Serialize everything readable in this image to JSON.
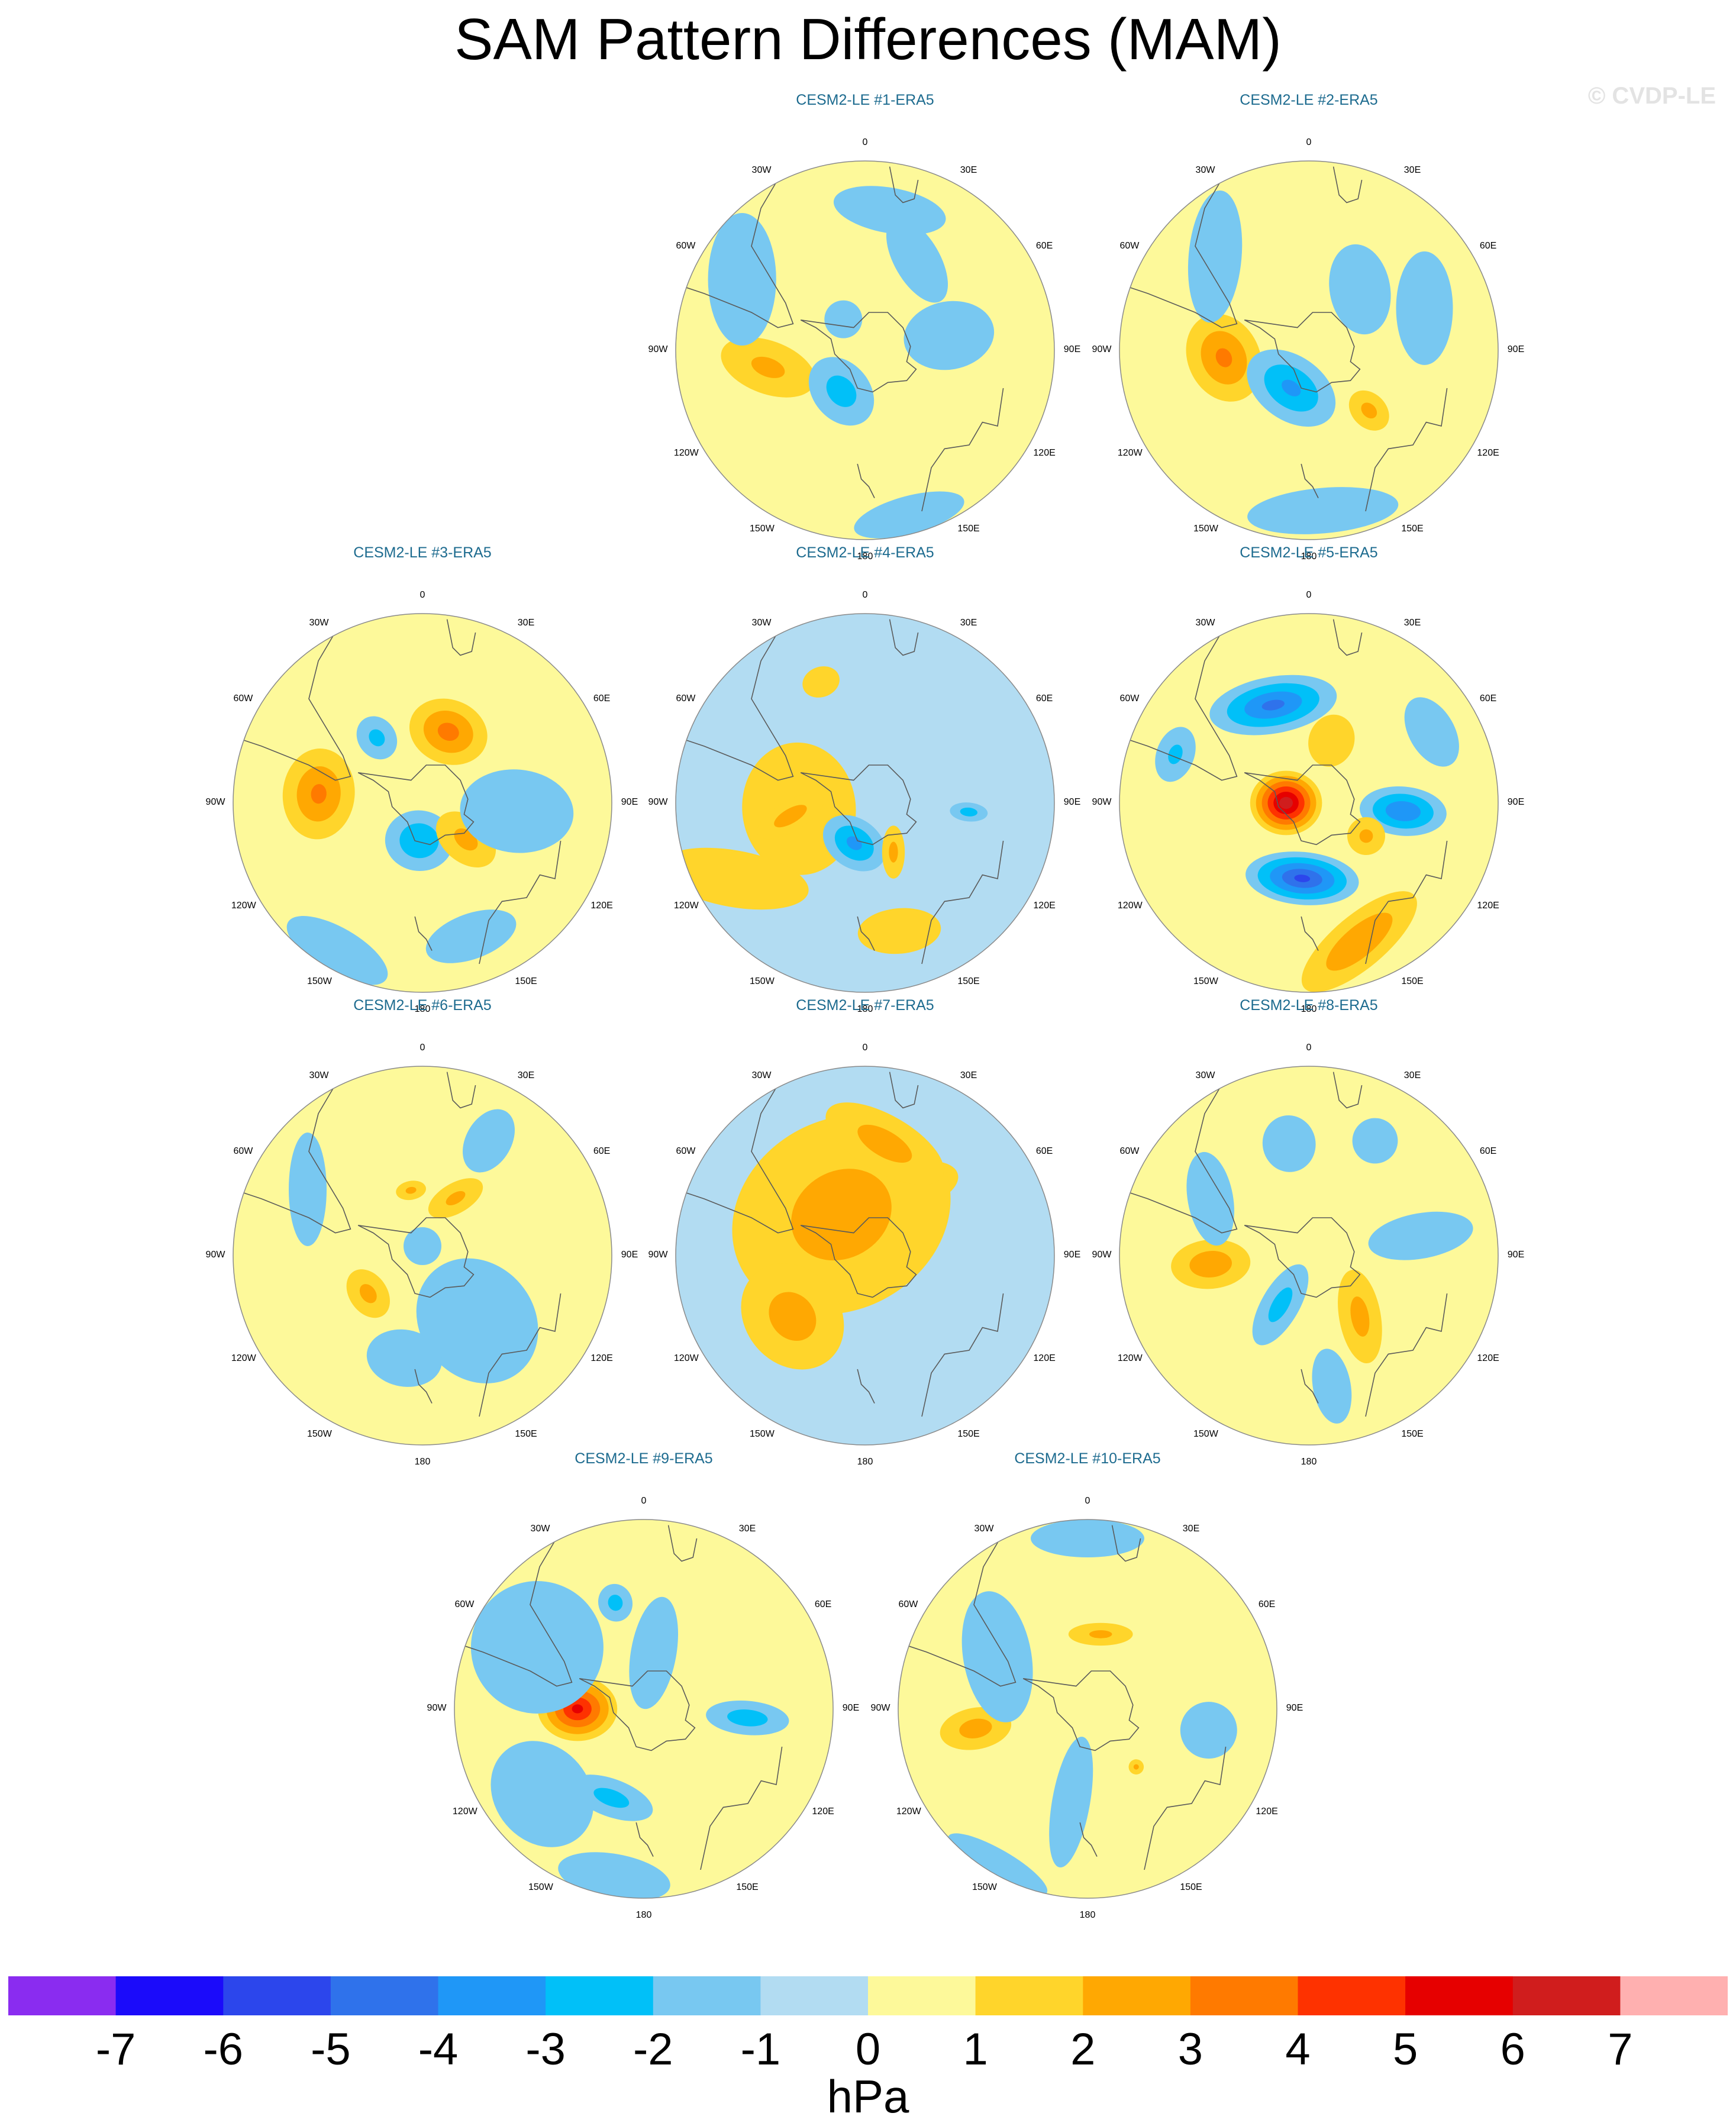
{
  "title": "SAM Pattern Differences (MAM)",
  "credit": "© CVDP-LE",
  "unit_label": "hPa",
  "colors": {
    "land_outline": "#5a5a5a",
    "circle_border": "#8a8a8a",
    "panel_title": "#1d6b8f"
  },
  "colorbar": {
    "ticks": [
      "-7",
      "-6",
      "-5",
      "-4",
      "-3",
      "-2",
      "-1",
      "0",
      "1",
      "2",
      "3",
      "4",
      "5",
      "6",
      "7"
    ],
    "colors": [
      "#8a2cf0",
      "#1b0bfa",
      "#2c46ec",
      "#2f72eb",
      "#1f97f7",
      "#01c0f8",
      "#78c8f1",
      "#b2dcf2",
      "#fdf99a",
      "#ffd52b",
      "#ffa802",
      "#ff7a00",
      "#fe3200",
      "#e60000",
      "#d01d1d",
      "#ffb0b0"
    ]
  },
  "longitude_labels": [
    "0",
    "30E",
    "60E",
    "90E",
    "120E",
    "150E",
    "180",
    "150W",
    "120W",
    "90W",
    "60W",
    "30W"
  ],
  "panels": [
    {
      "title": "CESM2-LE #1-ERA5",
      "base": 0,
      "blobs": [
        {
          "lon": -100,
          "r": 0.52,
          "rx": 0.26,
          "ry": 0.14,
          "rot": -60,
          "v": 1.2
        },
        {
          "lon": -150,
          "r": 0.25,
          "rx": 0.2,
          "ry": 0.15,
          "rot": 20,
          "v": -1.5
        },
        {
          "lon": 80,
          "r": 0.45,
          "rx": 0.18,
          "ry": 0.24,
          "rot": 0,
          "v": -1
        },
        {
          "lon": -60,
          "r": 0.75,
          "rx": 0.35,
          "ry": 0.18,
          "rot": -30,
          "v": -1
        },
        {
          "lon": 10,
          "r": 0.75,
          "rx": 0.3,
          "ry": 0.12,
          "rot": 0,
          "v": -1
        },
        {
          "lon": -35,
          "r": 0.2,
          "rx": 0.1,
          "ry": 0.1,
          "rot": 0,
          "v": -1
        },
        {
          "lon": 165,
          "r": 0.9,
          "rx": 0.3,
          "ry": 0.1,
          "rot": 0,
          "v": -1
        },
        {
          "lon": 30,
          "r": 0.55,
          "rx": 0.25,
          "ry": 0.12,
          "rot": 30,
          "v": -1
        }
      ]
    },
    {
      "title": "CESM2-LE #2-ERA5",
      "base": 0,
      "blobs": [
        {
          "lon": -95,
          "r": 0.45,
          "rx": 0.24,
          "ry": 0.19,
          "rot": -20,
          "v": 2.2
        },
        {
          "lon": -155,
          "r": 0.22,
          "rx": 0.26,
          "ry": 0.17,
          "rot": 10,
          "v": -2.2
        },
        {
          "lon": 135,
          "r": 0.45,
          "rx": 0.09,
          "ry": 0.12,
          "rot": 0,
          "v": 1.3
        },
        {
          "lon": 40,
          "r": 0.42,
          "rx": 0.24,
          "ry": 0.16,
          "rot": 40,
          "v": -1
        },
        {
          "lon": -45,
          "r": 0.7,
          "rx": 0.35,
          "ry": 0.14,
          "rot": -40,
          "v": -1
        },
        {
          "lon": 70,
          "r": 0.65,
          "rx": 0.3,
          "ry": 0.15,
          "rot": 20,
          "v": -1
        },
        {
          "lon": 175,
          "r": 0.85,
          "rx": 0.4,
          "ry": 0.12,
          "rot": 0,
          "v": -1
        }
      ]
    },
    {
      "title": "CESM2-LE #3-ERA5",
      "base": 0,
      "blobs": [
        {
          "lon": -85,
          "r": 0.55,
          "rx": 0.24,
          "ry": 0.19,
          "rot": 0,
          "v": 2.2
        },
        {
          "lon": 20,
          "r": 0.4,
          "rx": 0.21,
          "ry": 0.17,
          "rot": 0,
          "v": 2.4
        },
        {
          "lon": -175,
          "r": 0.2,
          "rx": 0.18,
          "ry": 0.16,
          "rot": 0,
          "v": -2
        },
        {
          "lon": 130,
          "r": 0.3,
          "rx": 0.12,
          "ry": 0.18,
          "rot": 0,
          "v": 1.3
        },
        {
          "lon": -35,
          "r": 0.42,
          "rx": 0.1,
          "ry": 0.12,
          "rot": 0,
          "v": -1.3
        },
        {
          "lon": 95,
          "r": 0.5,
          "rx": 0.22,
          "ry": 0.3,
          "rot": 0,
          "v": -1
        },
        {
          "lon": -150,
          "r": 0.9,
          "rx": 0.3,
          "ry": 0.12,
          "rot": 0,
          "v": -1
        },
        {
          "lon": 160,
          "r": 0.75,
          "rx": 0.25,
          "ry": 0.12,
          "rot": 0,
          "v": -1
        }
      ]
    },
    {
      "title": "CESM2-LE #4-ERA5",
      "base": -1,
      "blobs": [
        {
          "lon": -95,
          "r": 0.35,
          "rx": 0.35,
          "ry": 0.3,
          "rot": 0,
          "v": 0.8
        },
        {
          "lon": -100,
          "r": 0.4,
          "rx": 0.08,
          "ry": 0.2,
          "rot": -20,
          "v": 1.6
        },
        {
          "lon": -165,
          "r": 0.22,
          "rx": 0.18,
          "ry": 0.13,
          "rot": 20,
          "v": -2.3
        },
        {
          "lon": 150,
          "r": 0.3,
          "rx": 0.06,
          "ry": 0.14,
          "rot": 30,
          "v": 1.3
        },
        {
          "lon": -120,
          "r": 0.8,
          "rx": 0.4,
          "ry": 0.15,
          "rot": -50,
          "v": 0.8
        },
        {
          "lon": -20,
          "r": 0.68,
          "rx": 0.1,
          "ry": 0.08,
          "rot": 0,
          "v": 0.8
        },
        {
          "lon": 165,
          "r": 0.7,
          "rx": 0.22,
          "ry": 0.12,
          "rot": 10,
          "v": 0.8
        },
        {
          "lon": 95,
          "r": 0.55,
          "rx": 0.05,
          "ry": 0.1,
          "rot": 0,
          "v": -1.5
        }
      ]
    },
    {
      "title": "CESM2-LE #5-ERA5",
      "base": 0,
      "blobs": [
        {
          "lon": -90,
          "r": 0.12,
          "rx": 0.17,
          "ry": 0.19,
          "rot": 0,
          "v": 5.8
        },
        {
          "lon": -20,
          "r": 0.55,
          "rx": 0.34,
          "ry": 0.15,
          "rot": 10,
          "v": -3.3
        },
        {
          "lon": -175,
          "r": 0.4,
          "rx": 0.3,
          "ry": 0.14,
          "rot": 0,
          "v": -4.3
        },
        {
          "lon": 95,
          "r": 0.5,
          "rx": 0.13,
          "ry": 0.23,
          "rot": 0,
          "v": -3
        },
        {
          "lon": 160,
          "r": 0.78,
          "rx": 0.38,
          "ry": 0.14,
          "rot": -20,
          "v": 2
        },
        {
          "lon": 20,
          "r": 0.35,
          "rx": 0.12,
          "ry": 0.14,
          "rot": 0,
          "v": 0.9
        },
        {
          "lon": -70,
          "r": 0.75,
          "rx": 0.15,
          "ry": 0.1,
          "rot": 0,
          "v": -1.2
        },
        {
          "lon": 60,
          "r": 0.75,
          "rx": 0.2,
          "ry": 0.12,
          "rot": 0,
          "v": -1
        },
        {
          "lon": 120,
          "r": 0.35,
          "rx": 0.1,
          "ry": 0.1,
          "rot": 0,
          "v": 1.2
        }
      ]
    },
    {
      "title": "CESM2-LE #6-ERA5",
      "base": 0,
      "blobs": [
        {
          "lon": -125,
          "r": 0.35,
          "rx": 0.14,
          "ry": 0.1,
          "rot": 0,
          "v": 1.3
        },
        {
          "lon": 30,
          "r": 0.35,
          "rx": 0.08,
          "ry": 0.16,
          "rot": 30,
          "v": 1.2
        },
        {
          "lon": -10,
          "r": 0.35,
          "rx": 0.08,
          "ry": 0.05,
          "rot": 0,
          "v": 1.2
        },
        {
          "lon": 140,
          "r": 0.45,
          "rx": 0.3,
          "ry": 0.35,
          "rot": 0,
          "v": -1
        },
        {
          "lon": -170,
          "r": 0.55,
          "rx": 0.1,
          "ry": 0.07,
          "rot": 0,
          "v": -1.6
        },
        {
          "lon": -170,
          "r": 0.55,
          "rx": 0.2,
          "ry": 0.15,
          "rot": 0,
          "v": -0.8
        },
        {
          "lon": -60,
          "r": 0.7,
          "rx": 0.3,
          "ry": 0.1,
          "rot": -30,
          "v": -1
        },
        {
          "lon": 30,
          "r": 0.7,
          "rx": 0.12,
          "ry": 0.18,
          "rot": 0,
          "v": -1
        },
        {
          "lon": 0,
          "r": 0.05,
          "rx": 0.1,
          "ry": 0.1,
          "rot": 0,
          "v": -1
        }
      ]
    },
    {
      "title": "CESM2-LE #7-ERA5",
      "base": -1,
      "blobs": [
        {
          "lon": -60,
          "r": 0.4,
          "rx": 0.24,
          "ry": 0.28,
          "rot": 0,
          "v": -0.9
        },
        {
          "lon": -30,
          "r": 0.42,
          "rx": 0.09,
          "ry": 0.1,
          "rot": 0,
          "v": -1.8
        },
        {
          "lon": -110,
          "r": 0.45,
          "rx": 0.2,
          "ry": 0.14,
          "rot": 10,
          "v": 1.4
        },
        {
          "lon": 35,
          "r": 0.45,
          "rx": 0.12,
          "ry": 0.24,
          "rot": 40,
          "v": 1.3
        },
        {
          "lon": -30,
          "r": 0.25,
          "rx": 0.6,
          "ry": 0.5,
          "rot": 0,
          "v": 1.5
        },
        {
          "lon": -130,
          "r": 0.5,
          "rx": 0.3,
          "ry": 0.25,
          "rot": 0,
          "v": 1.5
        },
        {
          "lon": 10,
          "r": 0.6,
          "rx": 0.35,
          "ry": 0.15,
          "rot": 20,
          "v": 1.5
        }
      ]
    },
    {
      "title": "CESM2-LE #8-ERA5",
      "base": 0,
      "blobs": [
        {
          "lon": -95,
          "r": 0.52,
          "rx": 0.13,
          "ry": 0.21,
          "rot": 0,
          "v": 1.8
        },
        {
          "lon": 140,
          "r": 0.42,
          "rx": 0.11,
          "ry": 0.25,
          "rot": 30,
          "v": 1.4
        },
        {
          "lon": -150,
          "r": 0.3,
          "rx": 0.1,
          "ry": 0.24,
          "rot": 0,
          "v": -1.4
        },
        {
          "lon": -10,
          "r": 0.6,
          "rx": 0.14,
          "ry": 0.15,
          "rot": 0,
          "v": -1
        },
        {
          "lon": 80,
          "r": 0.6,
          "rx": 0.12,
          "ry": 0.28,
          "rot": 0,
          "v": -1
        },
        {
          "lon": 30,
          "r": 0.7,
          "rx": 0.12,
          "ry": 0.12,
          "rot": 0,
          "v": -1
        },
        {
          "lon": -60,
          "r": 0.6,
          "rx": 0.25,
          "ry": 0.12,
          "rot": -40,
          "v": -1
        },
        {
          "lon": 170,
          "r": 0.7,
          "rx": 0.1,
          "ry": 0.2,
          "rot": 0,
          "v": -1
        }
      ]
    },
    {
      "title": "CESM2-LE #9-ERA5",
      "base": 0,
      "blobs": [
        {
          "lon": -90,
          "r": 0.35,
          "rx": 0.17,
          "ry": 0.21,
          "rot": 0,
          "v": 4.3
        },
        {
          "lon": -160,
          "r": 0.5,
          "rx": 0.23,
          "ry": 0.1,
          "rot": 0,
          "v": -1.4
        },
        {
          "lon": -15,
          "r": 0.58,
          "rx": 0.09,
          "ry": 0.1,
          "rot": 0,
          "v": -1.4
        },
        {
          "lon": 95,
          "r": 0.55,
          "rx": 0.09,
          "ry": 0.22,
          "rot": 0,
          "v": -1.6
        },
        {
          "lon": -60,
          "r": 0.65,
          "rx": 0.35,
          "ry": 0.35,
          "rot": 0,
          "v": -1
        },
        {
          "lon": -130,
          "r": 0.7,
          "rx": 0.3,
          "ry": 0.25,
          "rot": 0,
          "v": -1
        },
        {
          "lon": 10,
          "r": 0.3,
          "rx": 0.12,
          "ry": 0.3,
          "rot": 0,
          "v": -1
        },
        {
          "lon": -170,
          "r": 0.9,
          "rx": 0.3,
          "ry": 0.12,
          "rot": 0,
          "v": -1
        }
      ]
    },
    {
      "title": "CESM2-LE #10-ERA5",
      "base": 0,
      "blobs": [
        {
          "lon": -100,
          "r": 0.6,
          "rx": 0.11,
          "ry": 0.19,
          "rot": 0,
          "v": 1.5
        },
        {
          "lon": 10,
          "r": 0.4,
          "rx": 0.17,
          "ry": 0.06,
          "rot": -10,
          "v": 1.2
        },
        {
          "lon": 140,
          "r": 0.4,
          "rx": 0.04,
          "ry": 0.04,
          "rot": 0,
          "v": 1.2
        },
        {
          "lon": -60,
          "r": 0.55,
          "rx": 0.35,
          "ry": 0.18,
          "rot": -40,
          "v": -1
        },
        {
          "lon": -170,
          "r": 0.5,
          "rx": 0.1,
          "ry": 0.35,
          "rot": 0,
          "v": -1
        },
        {
          "lon": 0,
          "r": 0.9,
          "rx": 0.3,
          "ry": 0.1,
          "rot": 0,
          "v": -1
        },
        {
          "lon": 100,
          "r": 0.65,
          "rx": 0.15,
          "ry": 0.15,
          "rot": 0,
          "v": -1
        },
        {
          "lon": -150,
          "r": 0.95,
          "rx": 0.3,
          "ry": 0.08,
          "rot": 0,
          "v": -1
        }
      ]
    }
  ]
}
